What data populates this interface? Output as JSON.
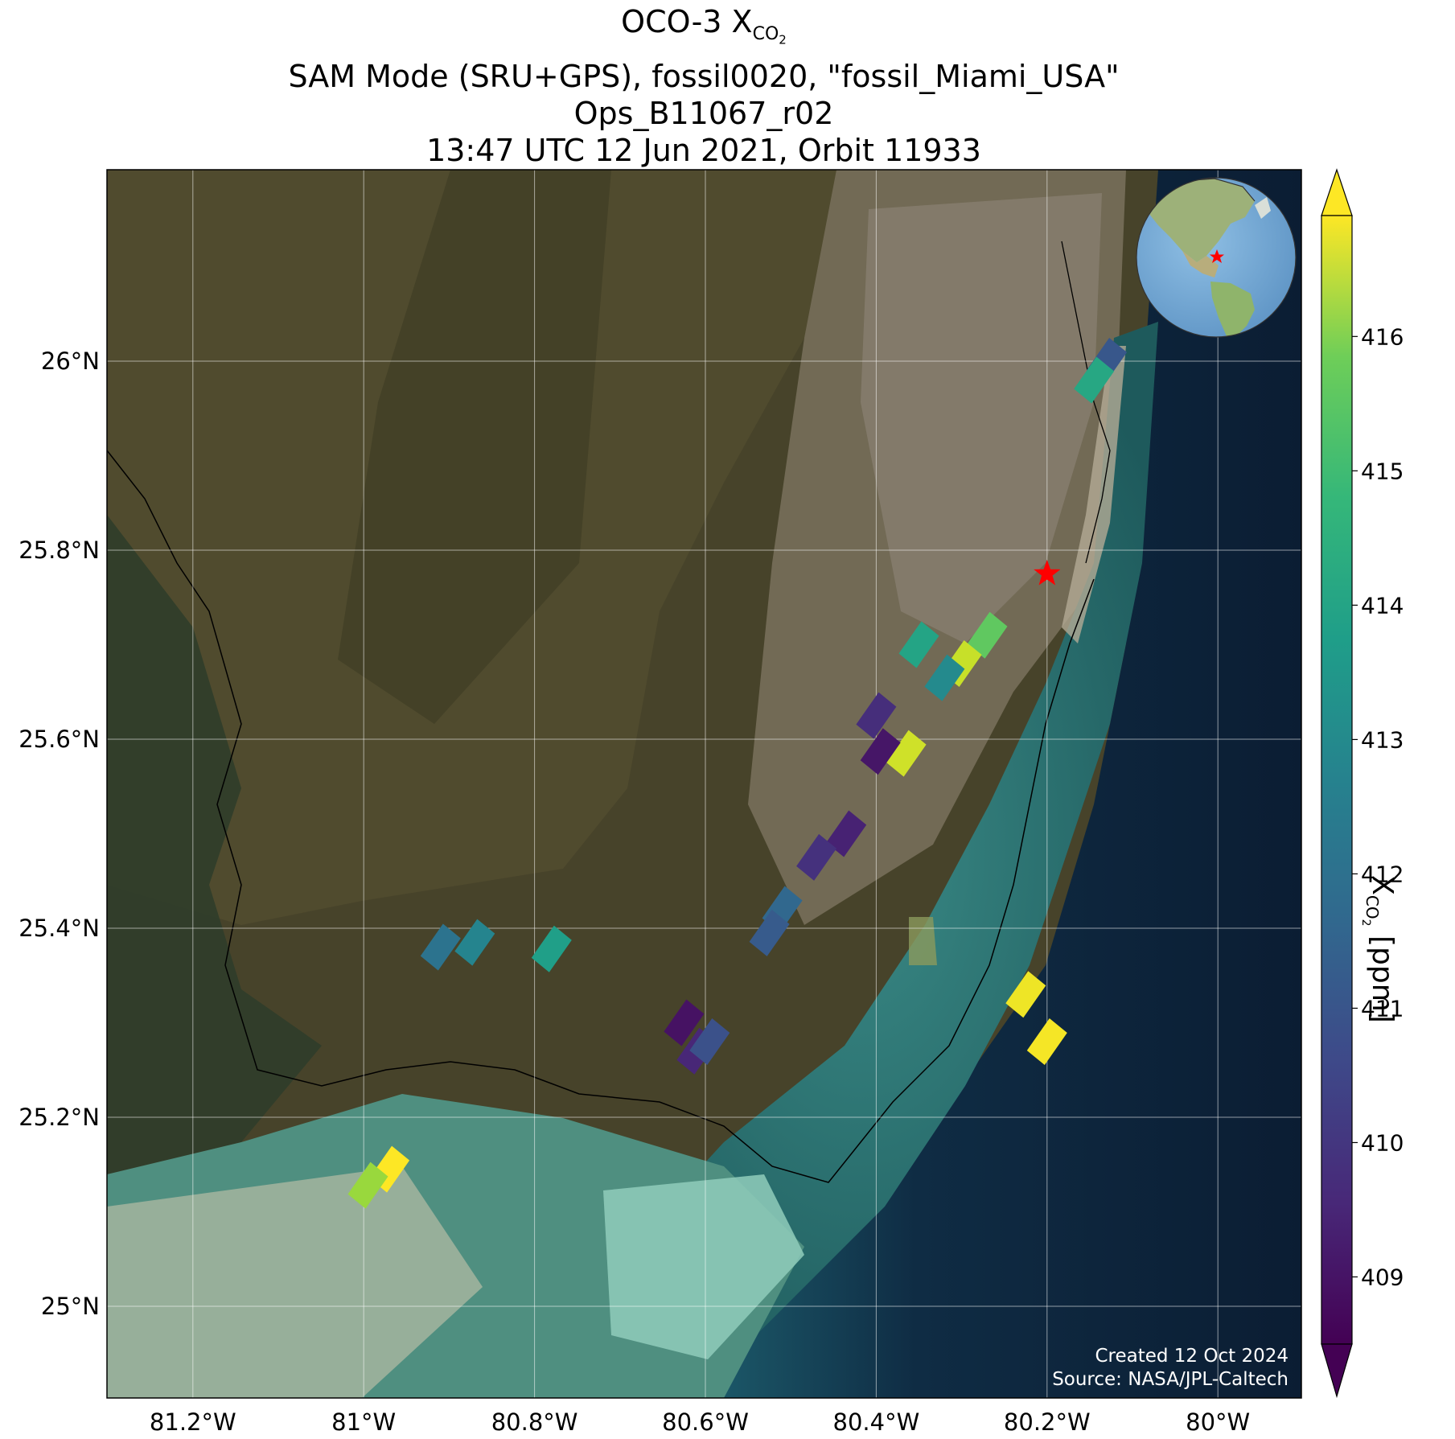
{
  "title": {
    "line1_prefix": "OCO-3 X",
    "line1_sub": "CO",
    "line1_subsub": "2",
    "line2": "SAM Mode (SRU+GPS), fossil0020, \"fossil_Miami_USA\"",
    "line3": "Ops_B11067_r02",
    "line4": "13:47 UTC 12 Jun 2021, Orbit 11933"
  },
  "map": {
    "lon_ticks": [
      "81.2°W",
      "81°W",
      "80.8°W",
      "80.6°W",
      "80.4°W",
      "80.2°W",
      "80°W"
    ],
    "lat_ticks": [
      "26°N",
      "25.8°N",
      "25.6°N",
      "25.4°N",
      "25.2°N",
      "25°N"
    ],
    "target_marker": "red-star",
    "credit_line1": "Created 12 Oct 2024",
    "credit_line2": "Source: NASA/JPL-Caltech"
  },
  "colorbar": {
    "label_prefix": "X",
    "label_sub": "CO",
    "label_subsub": "2",
    "label_suffix": " [ppm]",
    "ticks": [
      "409",
      "410",
      "411",
      "412",
      "413",
      "414",
      "415",
      "416"
    ],
    "colormap": "viridis",
    "extend": "both"
  },
  "chart_data": {
    "type": "scatter",
    "title": "OCO-3 XCO2",
    "xlabel": "",
    "ylabel": "",
    "xlim": [
      -81.29,
      -79.89
    ],
    "ylim": [
      24.9,
      26.2
    ],
    "color_range": [
      408.5,
      416.9
    ],
    "target": {
      "lon": -80.2,
      "lat": 25.775
    },
    "soundings": [
      {
        "lon": -80.13,
        "lat": 26.0,
        "xco2": 410.8
      },
      {
        "lon": -80.145,
        "lat": 25.98,
        "xco2": 413.5
      },
      {
        "lon": -80.35,
        "lat": 25.7,
        "xco2": 413.4
      },
      {
        "lon": -80.27,
        "lat": 25.71,
        "xco2": 414.8
      },
      {
        "lon": -80.3,
        "lat": 25.68,
        "xco2": 416.2
      },
      {
        "lon": -80.32,
        "lat": 25.665,
        "xco2": 412.5
      },
      {
        "lon": -80.4,
        "lat": 25.625,
        "xco2": 409.6
      },
      {
        "lon": -80.365,
        "lat": 25.585,
        "xco2": 416.3
      },
      {
        "lon": -80.395,
        "lat": 25.587,
        "xco2": 409.0
      },
      {
        "lon": -80.435,
        "lat": 25.5,
        "xco2": 409.3
      },
      {
        "lon": -80.47,
        "lat": 25.475,
        "xco2": 409.7
      },
      {
        "lon": -80.51,
        "lat": 25.42,
        "xco2": 411.3
      },
      {
        "lon": -80.525,
        "lat": 25.395,
        "xco2": 410.9
      },
      {
        "lon": -80.87,
        "lat": 25.385,
        "xco2": 412.3
      },
      {
        "lon": -80.91,
        "lat": 25.38,
        "xco2": 411.7
      },
      {
        "lon": -80.78,
        "lat": 25.378,
        "xco2": 413.2
      },
      {
        "lon": -80.625,
        "lat": 25.3,
        "xco2": 408.9
      },
      {
        "lon": -80.61,
        "lat": 25.27,
        "xco2": 409.4
      },
      {
        "lon": -80.595,
        "lat": 25.28,
        "xco2": 410.6
      },
      {
        "lon": -80.225,
        "lat": 25.33,
        "xco2": 416.7
      },
      {
        "lon": -80.2,
        "lat": 25.28,
        "xco2": 416.8
      },
      {
        "lon": -80.97,
        "lat": 25.145,
        "xco2": 416.9
      },
      {
        "lon": -80.995,
        "lat": 25.128,
        "xco2": 415.6
      }
    ]
  }
}
